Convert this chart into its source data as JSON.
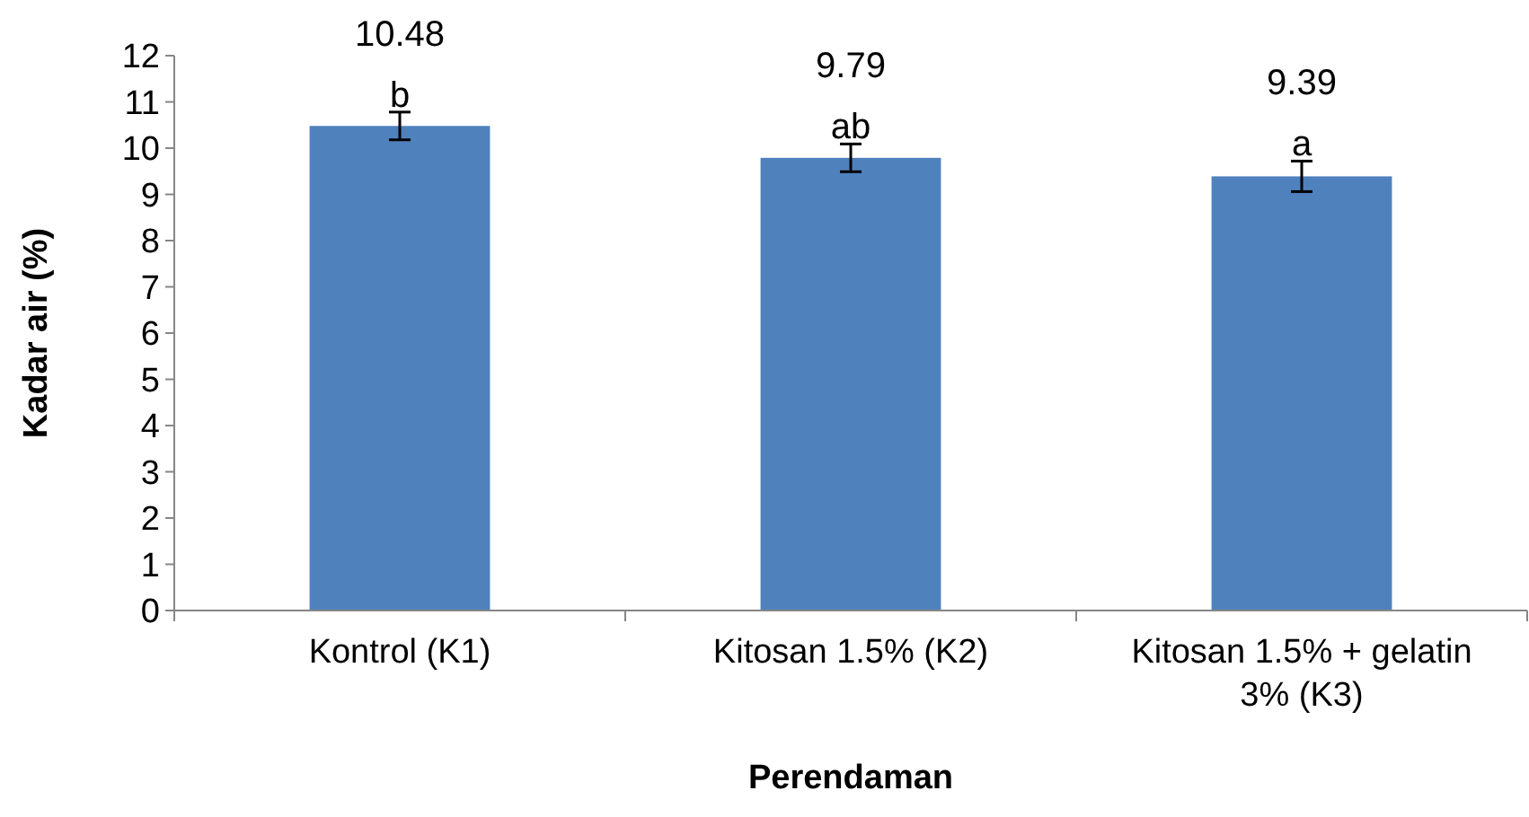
{
  "chart_data": {
    "type": "bar",
    "xlabel": "Perendaman",
    "ylabel": "Kadar air (%)",
    "categories": [
      "Kontrol (K1)",
      "Kitosan 1.5% (K2)",
      "Kitosan 1.5% + gelatin 3% (K3)"
    ],
    "values": [
      10.48,
      9.79,
      9.39
    ],
    "color": "#4f81bd",
    "errors": [
      0.3,
      0.3,
      0.33
    ],
    "data_labels": true,
    "ylim": [
      0,
      12
    ],
    "yticks": [
      0,
      1,
      2,
      3,
      4,
      5,
      6,
      7,
      8,
      9,
      10,
      11,
      12
    ],
    "annotations": [
      {
        "text": "b",
        "x": "Kontrol (K1)",
        "y": 10.78
      },
      {
        "text": "ab",
        "x": "Kitosan 1.5% (K2)",
        "y": 10.09
      },
      {
        "text": "a",
        "x": "Kitosan 1.5% + gelatin 3% (K3)",
        "y": 9.72
      }
    ]
  }
}
